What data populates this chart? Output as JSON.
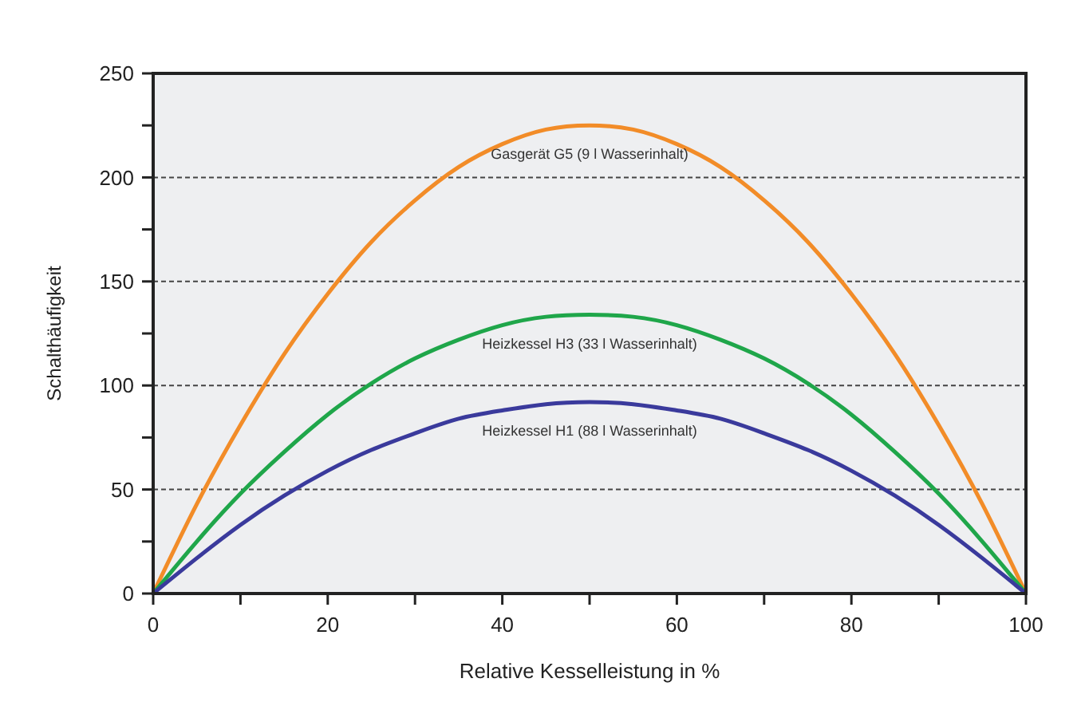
{
  "chart_data": {
    "type": "line",
    "xlabel": "Relative Kesselleistung in %",
    "ylabel": "Schalthäufigkeit",
    "x": [
      0,
      5,
      10,
      15,
      20,
      25,
      30,
      35,
      40,
      45,
      50,
      55,
      60,
      65,
      70,
      75,
      80,
      85,
      90,
      95,
      100
    ],
    "series": [
      {
        "name": "Gasgerät G5 (9 l Wasserinhalt)",
        "color": "#f28c28",
        "values": [
          0,
          43,
          81,
          115,
          144,
          169,
          189,
          205,
          216,
          223,
          225,
          223,
          216,
          205,
          189,
          169,
          144,
          115,
          81,
          43,
          0
        ]
      },
      {
        "name": "Heizkessel H3 (33 l Wasserinhalt)",
        "color": "#1fa64a",
        "values": [
          0,
          25,
          48,
          68,
          86,
          101,
          113,
          122,
          129,
          133,
          134,
          133,
          129,
          122,
          113,
          101,
          86,
          68,
          48,
          25,
          0
        ]
      },
      {
        "name": "Heizkessel H1 (88 l Wasserinhalt)",
        "color": "#3a3a9c",
        "values": [
          0,
          17,
          33,
          47,
          59,
          69,
          77,
          84,
          88,
          91,
          92,
          91,
          88,
          84,
          77,
          69,
          59,
          47,
          33,
          17,
          0
        ]
      }
    ],
    "xlim": [
      0,
      100
    ],
    "xticks": [
      0,
      {
        "value": 10,
        "label": null
      },
      20,
      {
        "value": 30,
        "label": null
      },
      40,
      {
        "value": 50,
        "label": null
      },
      60,
      {
        "value": 70,
        "label": null
      },
      80,
      {
        "value": 90,
        "label": null
      },
      100
    ],
    "ylim": [
      0,
      250
    ],
    "yticks": [
      0,
      {
        "value": 25,
        "label": null
      },
      50,
      {
        "value": 75,
        "label": null
      },
      100,
      {
        "value": 125,
        "label": null
      },
      150,
      {
        "value": 175,
        "label": null
      },
      200,
      {
        "value": 225,
        "label": null
      },
      250
    ],
    "grid": "y",
    "line_style": "solid",
    "marker": "none"
  }
}
